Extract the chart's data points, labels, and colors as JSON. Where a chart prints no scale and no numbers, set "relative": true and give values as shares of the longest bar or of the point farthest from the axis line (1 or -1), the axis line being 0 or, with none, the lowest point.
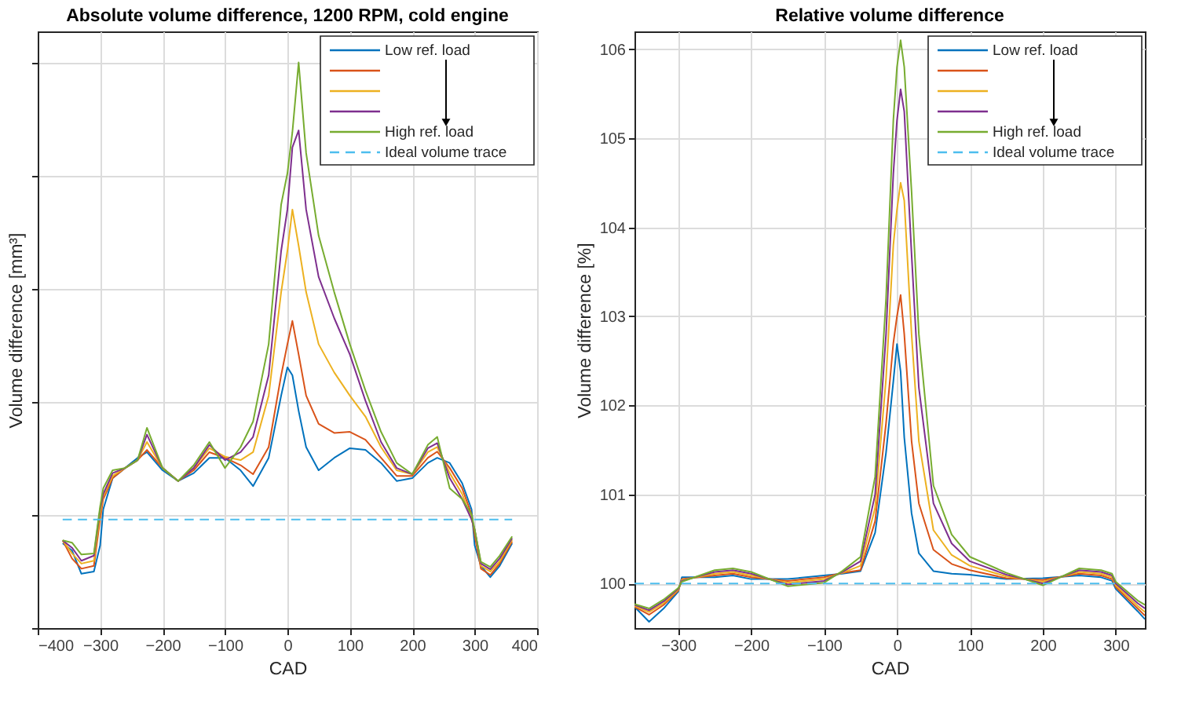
{
  "chart_data": [
    {
      "type": "line",
      "title": "Absolute volume difference, 1200 RPM, cold engine",
      "xlabel": "CAD",
      "ylabel": "Volume difference [mm³]",
      "relative": true,
      "xlim": [
        -400,
        400
      ],
      "xticks": [
        -400,
        -300,
        -200,
        -100,
        0,
        100,
        200,
        300,
        400
      ],
      "grid": true,
      "legend": "top right",
      "x": [
        -360,
        -345,
        -330,
        -310,
        -300,
        -295,
        -280,
        -260,
        -240,
        -225,
        -200,
        -175,
        -150,
        -125,
        -100,
        -75,
        -55,
        -30,
        -10,
        0,
        8,
        18,
        30,
        50,
        75,
        100,
        125,
        150,
        175,
        200,
        225,
        240,
        260,
        280,
        295,
        300,
        310,
        325,
        340,
        360
      ],
      "series": [
        {
          "name": "Low ref. load",
          "color": "#0072bd",
          "values": [
            0.15,
            0.137,
            0.096,
            0.1,
            0.146,
            0.21,
            0.265,
            0.283,
            0.301,
            0.311,
            0.279,
            0.26,
            0.274,
            0.301,
            0.301,
            0.279,
            0.251,
            0.301,
            0.411,
            0.461,
            0.447,
            0.384,
            0.32,
            0.279,
            0.301,
            0.318,
            0.315,
            0.292,
            0.26,
            0.265,
            0.292,
            0.301,
            0.292,
            0.256,
            0.21,
            0.146,
            0.11,
            0.09,
            0.11,
            0.15
          ]
        },
        {
          "color": "#d95319",
          "values": [
            0.155,
            0.123,
            0.105,
            0.11,
            0.192,
            0.228,
            0.265,
            0.283,
            0.297,
            0.315,
            0.283,
            0.26,
            0.279,
            0.311,
            0.301,
            0.288,
            0.272,
            0.32,
            0.447,
            0.502,
            0.543,
            0.484,
            0.411,
            0.361,
            0.345,
            0.347,
            0.333,
            0.301,
            0.269,
            0.269,
            0.301,
            0.312,
            0.283,
            0.247,
            0.201,
            0.164,
            0.105,
            0.094,
            0.114,
            0.153
          ]
        },
        {
          "color": "#edb120",
          "values": [
            0.155,
            0.132,
            0.114,
            0.119,
            0.201,
            0.233,
            0.269,
            0.283,
            0.297,
            0.329,
            0.283,
            0.26,
            0.283,
            0.318,
            0.303,
            0.297,
            0.311,
            0.411,
            0.594,
            0.667,
            0.74,
            0.676,
            0.594,
            0.502,
            0.452,
            0.411,
            0.374,
            0.32,
            0.279,
            0.272,
            0.311,
            0.32,
            0.274,
            0.237,
            0.192,
            0.174,
            0.11,
            0.1,
            0.118,
            0.156
          ]
        },
        {
          "color": "#7e2f8e",
          "values": [
            0.155,
            0.142,
            0.119,
            0.128,
            0.21,
            0.237,
            0.274,
            0.283,
            0.297,
            0.342,
            0.283,
            0.26,
            0.283,
            0.324,
            0.297,
            0.311,
            0.338,
            0.447,
            0.667,
            0.74,
            0.85,
            0.88,
            0.74,
            0.621,
            0.548,
            0.484,
            0.402,
            0.329,
            0.283,
            0.272,
            0.318,
            0.327,
            0.265,
            0.228,
            0.192,
            0.174,
            0.114,
            0.104,
            0.123,
            0.159
          ]
        },
        {
          "name": "High ref. load",
          "color": "#77ac30",
          "values": [
            0.155,
            0.151,
            0.13,
            0.132,
            0.215,
            0.247,
            0.279,
            0.283,
            0.297,
            0.354,
            0.283,
            0.26,
            0.288,
            0.329,
            0.283,
            0.32,
            0.365,
            0.502,
            0.749,
            0.804,
            0.877,
            1.0,
            0.84,
            0.694,
            0.594,
            0.502,
            0.42,
            0.347,
            0.292,
            0.272,
            0.324,
            0.338,
            0.247,
            0.228,
            0.201,
            0.174,
            0.117,
            0.108,
            0.128,
            0.162
          ]
        },
        {
          "name": "Ideal volume trace",
          "color": "#4dbeee",
          "line_style": "dashed",
          "x": [
            -360,
            360
          ],
          "values": [
            0.192,
            0.192
          ]
        }
      ]
    },
    {
      "type": "line",
      "title": "Relative volume difference",
      "xlabel": "CAD",
      "ylabel": "Volume difference [%]",
      "xlim": [
        -360,
        340
      ],
      "xticks": [
        -300,
        -200,
        -100,
        0,
        100,
        200,
        300
      ],
      "ylim": [
        99.5,
        106.2
      ],
      "yticks": [
        100,
        101,
        102,
        103,
        104,
        105,
        106
      ],
      "grid": true,
      "legend": "top right",
      "x": [
        -360,
        -340,
        -320,
        -300,
        -295,
        -250,
        -225,
        -200,
        -150,
        -100,
        -75,
        -50,
        -30,
        -15,
        -5,
        0,
        5,
        10,
        20,
        30,
        50,
        75,
        100,
        150,
        200,
        250,
        280,
        295,
        300,
        330,
        340
      ],
      "series": [
        {
          "name": "Low ref. load",
          "color": "#0072bd",
          "values": [
            99.74,
            99.57,
            99.72,
            99.91,
            100.07,
            100.07,
            100.09,
            100.05,
            100.05,
            100.09,
            100.11,
            100.14,
            100.57,
            101.47,
            102.27,
            102.69,
            102.38,
            101.64,
            100.79,
            100.34,
            100.14,
            100.11,
            100.1,
            100.05,
            100.06,
            100.09,
            100.07,
            100.03,
            99.94,
            99.69,
            99.6
          ]
        },
        {
          "color": "#d95319",
          "values": [
            99.74,
            99.65,
            99.76,
            99.92,
            100.05,
            100.09,
            100.11,
            100.07,
            100.03,
            100.07,
            100.12,
            100.15,
            100.7,
            101.8,
            102.7,
            103.0,
            103.24,
            102.8,
            101.6,
            100.9,
            100.38,
            100.22,
            100.15,
            100.06,
            100.04,
            100.11,
            100.09,
            100.05,
            99.96,
            99.72,
            99.64
          ]
        },
        {
          "color": "#edb120",
          "values": [
            99.75,
            99.68,
            99.78,
            99.93,
            100.04,
            100.11,
            100.13,
            100.09,
            100.01,
            100.05,
            100.12,
            100.2,
            100.85,
            102.3,
            103.8,
            104.2,
            104.5,
            104.3,
            102.8,
            101.6,
            100.6,
            100.32,
            100.2,
            100.08,
            100.02,
            100.13,
            100.11,
            100.07,
            99.98,
            99.75,
            99.68
          ]
        },
        {
          "color": "#7e2f8e",
          "values": [
            99.76,
            99.7,
            99.8,
            99.94,
            100.03,
            100.13,
            100.15,
            100.11,
            99.99,
            100.03,
            100.13,
            100.25,
            101.0,
            102.8,
            104.6,
            105.2,
            105.55,
            105.3,
            103.7,
            102.2,
            100.9,
            100.45,
            100.25,
            100.1,
            100.0,
            100.15,
            100.13,
            100.09,
            100.0,
            99.78,
            99.72
          ]
        },
        {
          "name": "High ref. load",
          "color": "#77ac30",
          "values": [
            99.77,
            99.72,
            99.82,
            99.95,
            100.02,
            100.15,
            100.17,
            100.13,
            99.97,
            100.01,
            100.14,
            100.3,
            101.2,
            103.2,
            105.2,
            105.8,
            106.1,
            105.8,
            104.4,
            102.8,
            101.1,
            100.55,
            100.3,
            100.12,
            99.98,
            100.17,
            100.15,
            100.11,
            100.02,
            99.81,
            99.76
          ]
        },
        {
          "name": "Ideal volume trace",
          "color": "#4dbeee",
          "line_style": "dashed",
          "x": [
            -360,
            340
          ],
          "values": [
            100,
            100
          ]
        }
      ]
    }
  ]
}
